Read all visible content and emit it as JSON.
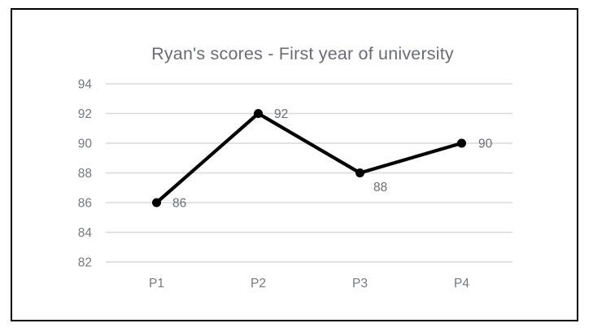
{
  "chart_data": {
    "type": "line",
    "title": "Ryan's scores - First year of university",
    "categories": [
      "P1",
      "P2",
      "P3",
      "P4"
    ],
    "values": [
      86,
      92,
      88,
      90
    ],
    "data_labels": [
      "86",
      "92",
      "88",
      "90"
    ],
    "xlabel": "",
    "ylabel": "",
    "yticks": [
      82,
      84,
      86,
      88,
      90,
      92,
      94
    ],
    "ylim": [
      82,
      94
    ],
    "grid": true,
    "legend_position": "none",
    "marker": "circle",
    "colors": {
      "line": "#000000",
      "marker": "#000000",
      "gridline": "#d9d9d9",
      "title": "#696d73",
      "tick_label": "#75787d",
      "category_label": "#75787d",
      "data_label": "#6b6e74",
      "frame_border": "#000000",
      "background": "#ffffff"
    }
  }
}
